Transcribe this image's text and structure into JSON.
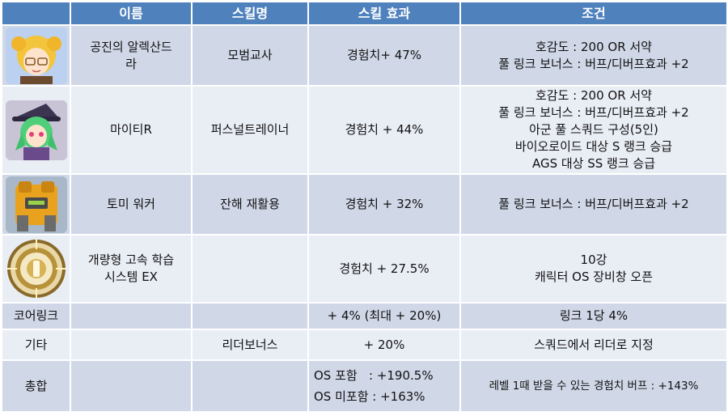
{
  "headers": [
    "",
    "이름",
    "스킬명",
    "스킬 효과",
    "조건"
  ],
  "rows": [
    {
      "icon": "blonde-glasses-girl-portrait",
      "name_lines": [
        "공진의 알렉산드",
        "라"
      ],
      "skill": "모범교사",
      "effect": "경험치+ 47%",
      "conditions": [
        "호감도 : 200 OR 서약",
        "풀 링크 보너스 : 버프/디버프효과 +2"
      ]
    },
    {
      "icon": "green-hair-witch-portrait",
      "name_lines": [
        "마이티R"
      ],
      "skill": "퍼스널트레이너",
      "effect": "경험치 + 44%",
      "conditions": [
        "호감도 : 200 OR 서약",
        "풀 링크 보너스 : 버프/디버프효과 +2",
        "아군 풀 스쿼드 구성(5인)",
        "바이오로이드 대상 S 랭크 승급",
        "AGS 대상 SS 랭크 승급"
      ]
    },
    {
      "icon": "yellow-mech-walker-portrait",
      "name_lines": [
        "토미 워커"
      ],
      "skill": "잔해 재활용",
      "effect": "경험치 + 32%",
      "conditions": [
        "풀 링크 보너스 : 버프/디버프효과 +2"
      ]
    },
    {
      "icon": "golden-chip-emblem",
      "name_lines": [
        "개량형 고속 학습",
        "시스템 EX"
      ],
      "skill": "",
      "effect": "경험치 + 27.5%",
      "conditions": [
        "10강",
        "캐릭터 OS 장비창 오픈"
      ]
    },
    {
      "label": "코어링크",
      "skill": "",
      "effect": "+ 4% (최대 + 20%)",
      "conditions": [
        "링크 1당 4%"
      ]
    },
    {
      "label": "기타",
      "skill": "리더보너스",
      "effect": "+ 20%",
      "conditions": [
        "스쿼드에서 리더로 지정"
      ]
    },
    {
      "label": "총합",
      "skill": "",
      "effect_lines": [
        "OS 포함   : +190.5%",
        "OS 미포함 : +163%"
      ],
      "conditions": [
        "레벨 1때 받을 수 있는 경험치 버프 : +143%"
      ]
    }
  ],
  "colors": {
    "header_bg": "#4f81bd",
    "row_odd": "#d0d8e8",
    "row_even": "#e9edf4"
  }
}
